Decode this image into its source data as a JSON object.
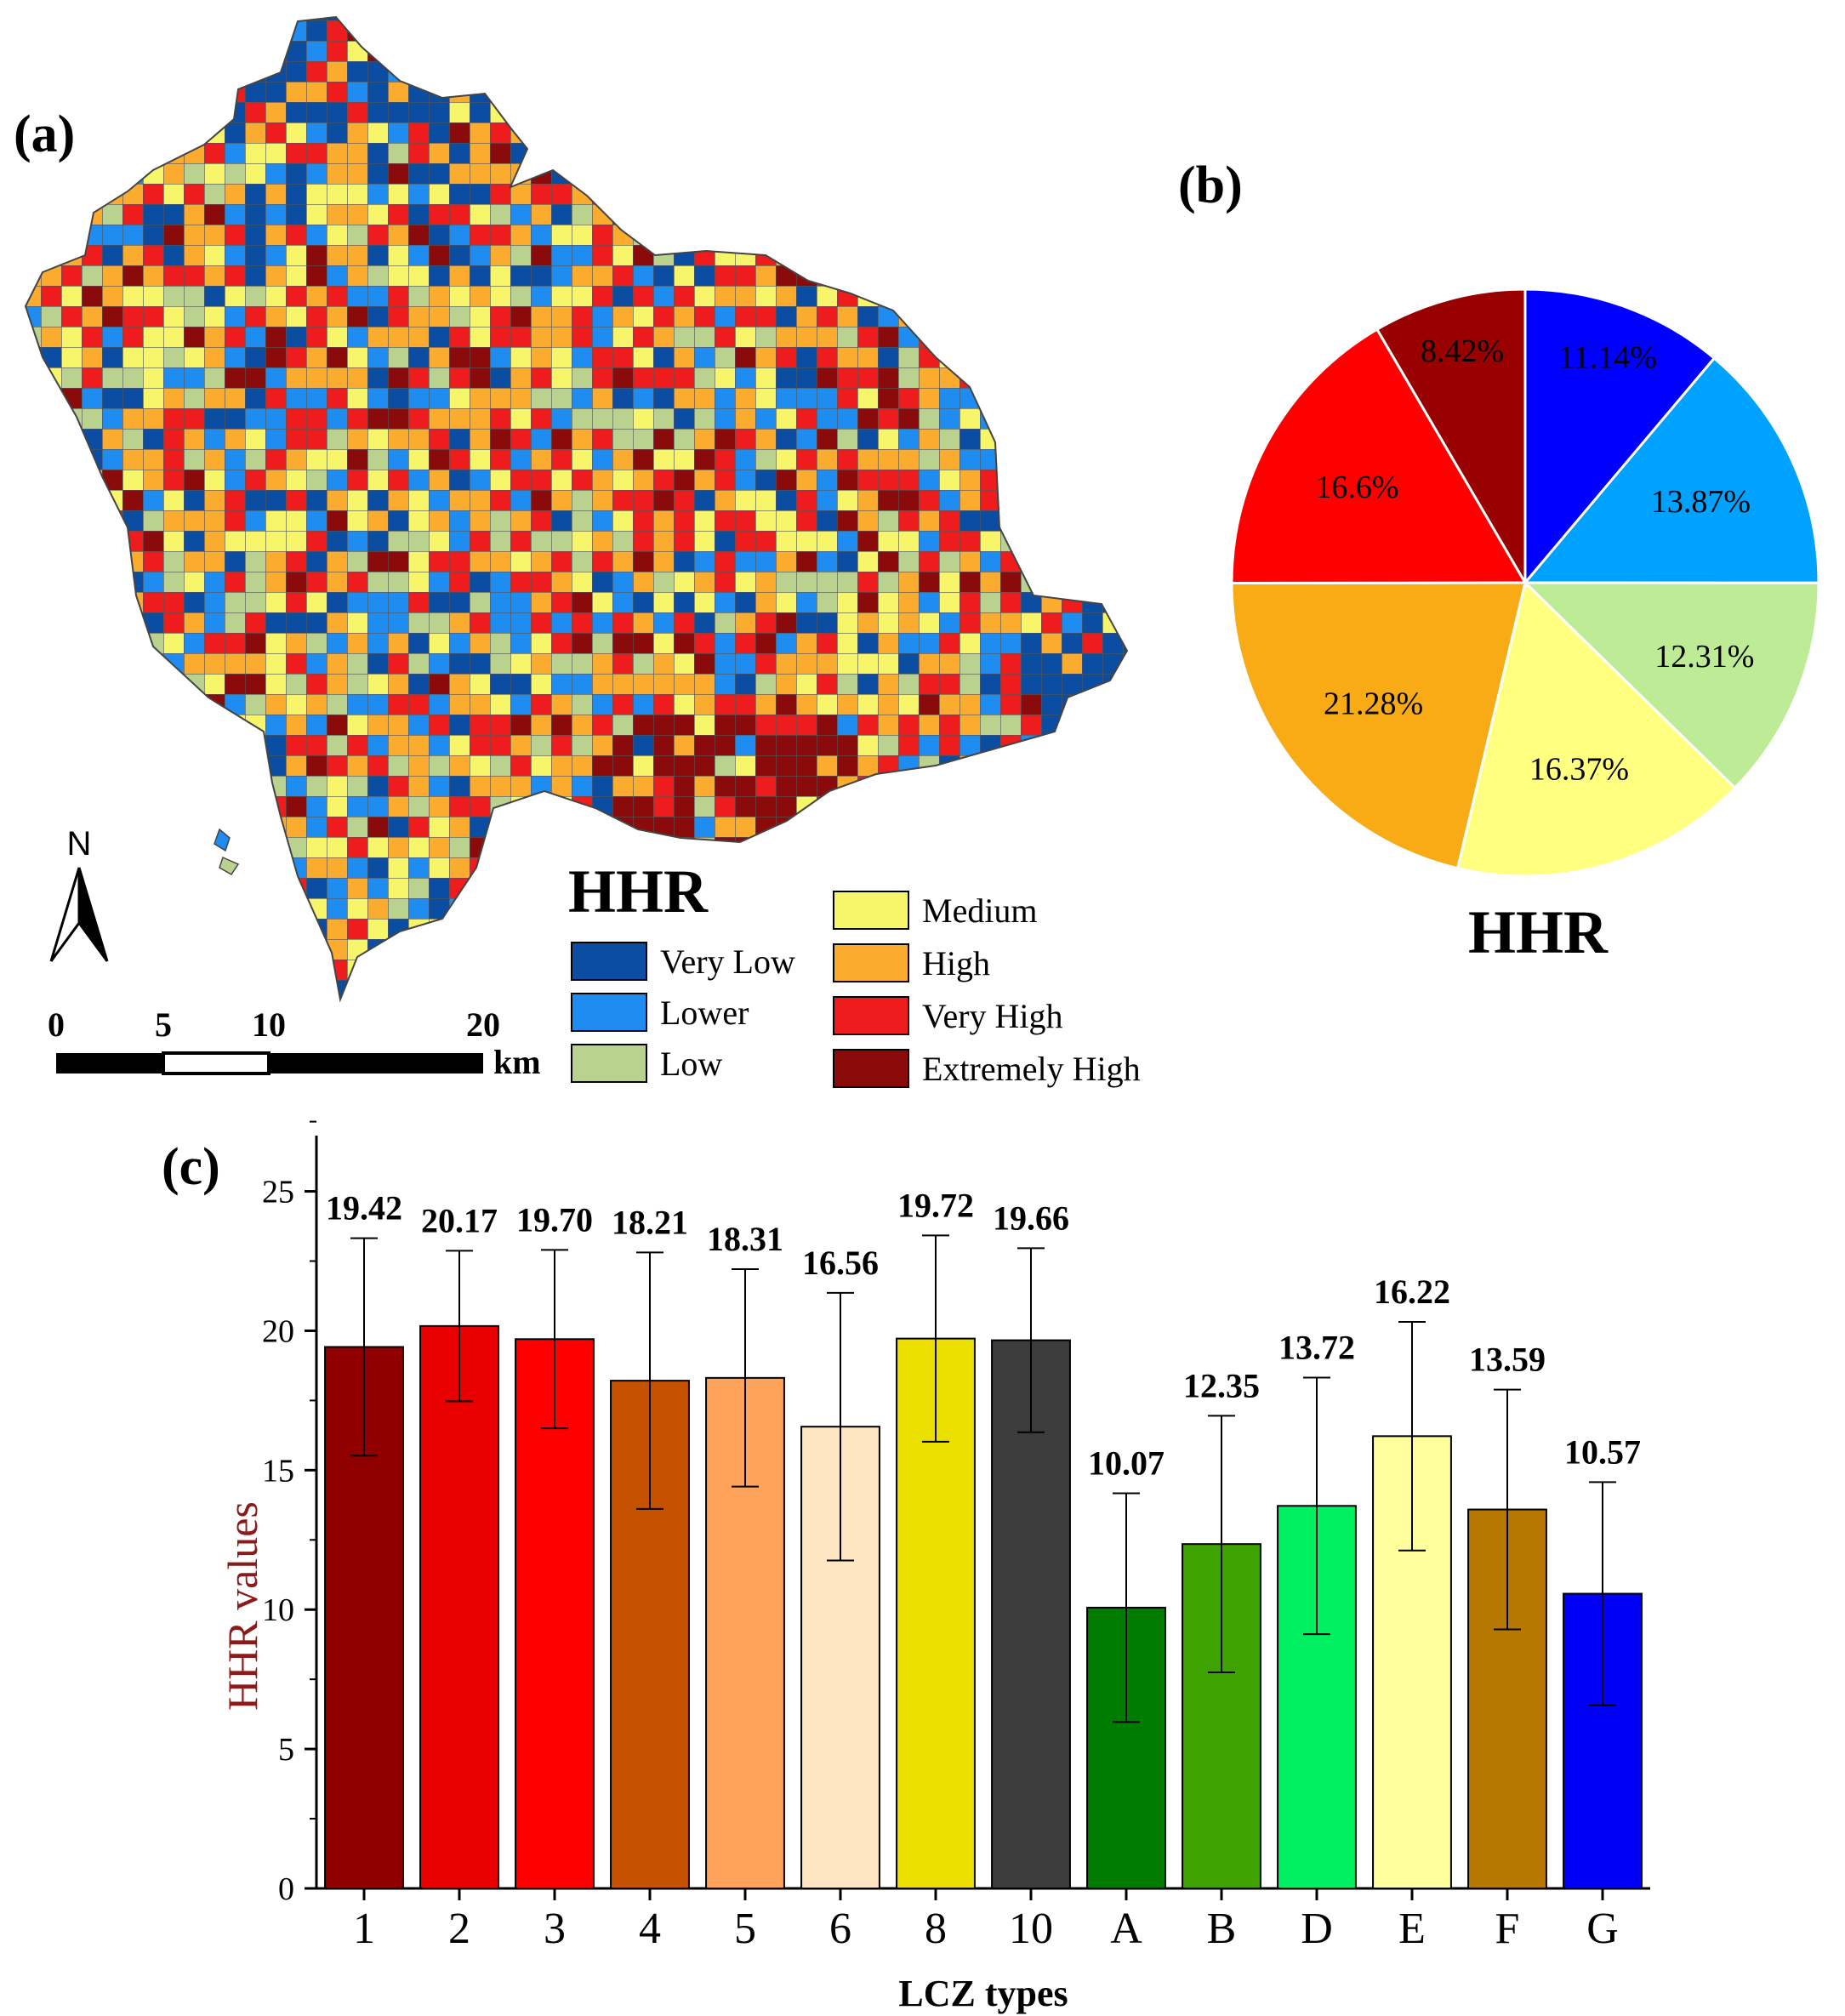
{
  "panel_labels": {
    "a": "(a)",
    "b": "(b)",
    "c": "(c)"
  },
  "map": {
    "north_label": "N",
    "title": "HHR",
    "scale_ticks": [
      "0",
      "5",
      "10",
      "20"
    ],
    "scale_unit": "km",
    "legend": [
      {
        "label": "Very Low",
        "color": "#0a4da3"
      },
      {
        "label": "Lower",
        "color": "#1e8cf0"
      },
      {
        "label": "Low",
        "color": "#b9d38f"
      },
      {
        "label": "Medium",
        "color": "#f7f56a"
      },
      {
        "label": "High",
        "color": "#fbab2e"
      },
      {
        "label": "Very High",
        "color": "#ee1c1c"
      },
      {
        "label": "Extremely High",
        "color": "#8b0a0a"
      }
    ]
  },
  "chart_data": [
    {
      "type": "pie",
      "title": "HHR",
      "slices": [
        {
          "value": 11.14,
          "label": "11.14%",
          "color": "#0000ff"
        },
        {
          "value": 13.87,
          "label": "13.87%",
          "color": "#00a2ff"
        },
        {
          "value": 12.31,
          "label": "12.31%",
          "color": "#bdeb96"
        },
        {
          "value": 16.37,
          "label": "16.37%",
          "color": "#ffff80"
        },
        {
          "value": 21.28,
          "label": "21.28%",
          "color": "#f8ab14"
        },
        {
          "value": 16.6,
          "label": "16.6%",
          "color": "#ff0000"
        },
        {
          "value": 8.42,
          "label": "8.42%",
          "color": "#990000"
        }
      ]
    },
    {
      "type": "bar",
      "title": "",
      "xlabel": "LCZ types",
      "ylabel": "HHR values",
      "ylim": [
        0,
        27
      ],
      "yticks": [
        0,
        5,
        10,
        15,
        20,
        25
      ],
      "categories": [
        "1",
        "2",
        "3",
        "4",
        "5",
        "6",
        "8",
        "10",
        "A",
        "B",
        "D",
        "E",
        "F",
        "G"
      ],
      "values": [
        19.42,
        20.17,
        19.7,
        18.21,
        18.31,
        16.56,
        19.72,
        19.66,
        10.07,
        12.35,
        13.72,
        16.22,
        13.59,
        10.57
      ],
      "value_labels": [
        "19.42",
        "20.17",
        "19.70",
        "18.21",
        "18.31",
        "16.56",
        "19.72",
        "19.66",
        "10.07",
        "12.35",
        "13.72",
        "16.22",
        "13.59",
        "10.57"
      ],
      "errors": [
        3.9,
        2.7,
        3.2,
        4.6,
        3.9,
        4.8,
        3.7,
        3.3,
        4.1,
        4.6,
        4.6,
        4.1,
        4.3,
        4.0
      ],
      "colors": [
        "#900000",
        "#e80000",
        "#fe0000",
        "#c55200",
        "#ffa35b",
        "#fee6c2",
        "#ebdf00",
        "#3c3c3c",
        "#007c00",
        "#3ea300",
        "#00f062",
        "#fefe9c",
        "#b67800",
        "#0000f6"
      ]
    }
  ]
}
